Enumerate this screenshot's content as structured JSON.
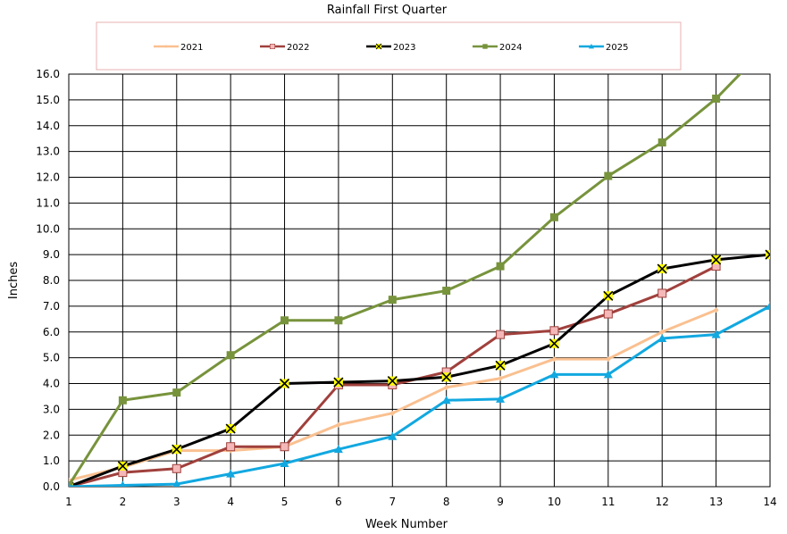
{
  "chart_data": {
    "type": "line",
    "title": "Rainfall First Quarter",
    "xlabel": "Week Number",
    "ylabel": "Inches",
    "x": [
      1,
      2,
      3,
      4,
      5,
      6,
      7,
      8,
      9,
      10,
      11,
      12,
      13,
      14
    ],
    "xlim": [
      1,
      14
    ],
    "ylim": [
      0,
      16
    ],
    "y_ticks": [
      "0.0",
      "1.0",
      "2.0",
      "3.0",
      "4.0",
      "5.0",
      "6.0",
      "7.0",
      "8.0",
      "9.0",
      "10.0",
      "11.0",
      "12.0",
      "13.0",
      "14.0",
      "15.0",
      "16.0"
    ],
    "x_ticks": [
      "1",
      "2",
      "3",
      "4",
      "5",
      "6",
      "7",
      "8",
      "9",
      "10",
      "11",
      "12",
      "13",
      "14"
    ],
    "grid": true,
    "legend_position": "top",
    "series": [
      {
        "name": "2021",
        "color": "#FAC090",
        "marker": "diamond",
        "values": [
          0.25,
          0.75,
          1.4,
          1.4,
          1.55,
          2.4,
          2.85,
          3.85,
          4.2,
          4.95,
          4.95,
          6.0,
          6.85,
          null
        ]
      },
      {
        "name": "2022",
        "color": "#A0403C",
        "marker": "square-open",
        "values": [
          0.0,
          0.55,
          0.7,
          1.55,
          1.55,
          3.95,
          3.95,
          4.45,
          5.9,
          6.05,
          6.7,
          7.5,
          8.55,
          null
        ]
      },
      {
        "name": "2023",
        "color": "#000000",
        "marker": "x-yellow",
        "values": [
          0.0,
          0.8,
          1.45,
          2.25,
          4.0,
          4.05,
          4.1,
          4.25,
          4.7,
          5.55,
          7.4,
          8.45,
          8.8,
          9.0
        ]
      },
      {
        "name": "2024",
        "color": "#77933C",
        "marker": "square",
        "values": [
          0.05,
          3.35,
          3.65,
          5.1,
          6.45,
          6.45,
          7.25,
          7.6,
          8.55,
          10.45,
          12.05,
          13.35,
          15.05,
          17.2
        ]
      },
      {
        "name": "2025",
        "color": "#12A8E0",
        "marker": "triangle",
        "values": [
          0.0,
          0.05,
          0.1,
          0.5,
          0.9,
          1.45,
          1.95,
          3.35,
          3.4,
          4.35,
          4.35,
          5.75,
          5.9,
          7.0
        ]
      }
    ]
  }
}
